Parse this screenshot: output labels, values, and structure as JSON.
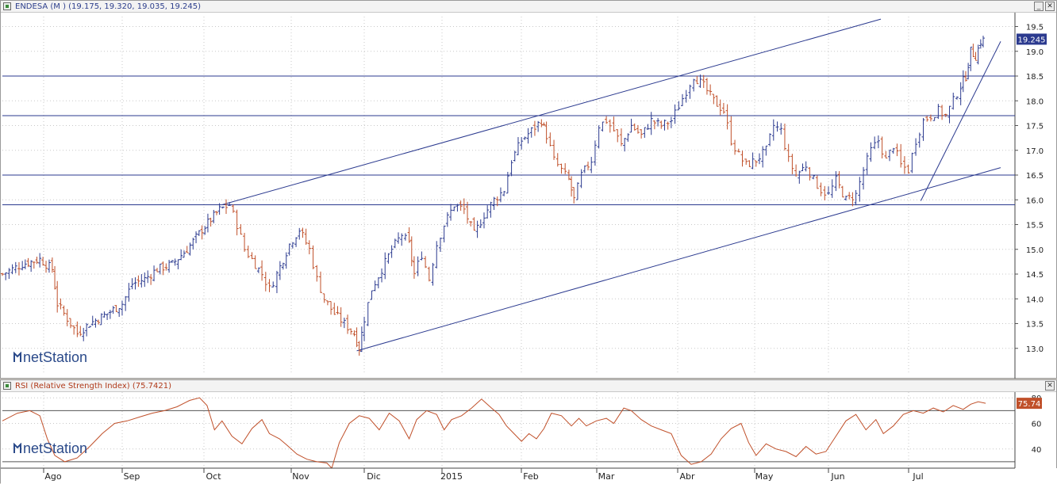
{
  "price_panel": {
    "title": "ENDESA (M ) (19.175, 19.320, 19.035, 19.245)",
    "last_label": "19.245",
    "logo": "netStation"
  },
  "rsi_panel": {
    "title": "RSI (Relative Strength Index) (75.7421)",
    "last_label": "75.74",
    "logo": "netStation"
  },
  "window_buttons": {
    "minimize": "_",
    "close": "✕"
  },
  "colors": {
    "up": "#2b3a8f",
    "down": "#c0502a",
    "rsi": "#c0502a",
    "line": "#2b3a8f",
    "grid": "#c8c8c8"
  },
  "chart_data": [
    {
      "type": "ohlc",
      "title": "ENDESA (M ) (19.175, 19.320, 19.035, 19.245)",
      "ylim": [
        12.5,
        19.7
      ],
      "yticks": [
        13.0,
        13.5,
        14.0,
        14.5,
        15.0,
        15.5,
        16.0,
        16.5,
        17.0,
        17.5,
        18.0,
        18.5,
        19.0,
        19.5
      ],
      "last_value": 19.245,
      "horizontal_levels": [
        18.5,
        17.7,
        16.5,
        15.9
      ],
      "trendlines": [
        {
          "from": [
            "Oct",
            15.9
          ],
          "to": [
            "Jul",
            19.65
          ]
        },
        {
          "from": [
            "Nov",
            12.95
          ],
          "to": [
            "Jul",
            16.65
          ]
        },
        {
          "from": [
            "Jul",
            15.98
          ],
          "to": [
            "Jul",
            19.2
          ]
        }
      ],
      "months": [
        "Ago",
        "Sep",
        "Oct",
        "Nov",
        "Dic",
        "2015",
        "Feb",
        "Mar",
        "Abr",
        "May",
        "Jun",
        "Jul"
      ],
      "close_path": [
        [
          0,
          14.5
        ],
        [
          8,
          14.7
        ],
        [
          15,
          14.8
        ],
        [
          20,
          14.6
        ],
        [
          22,
          13.9
        ],
        [
          26,
          13.6
        ],
        [
          30,
          13.3
        ],
        [
          35,
          13.5
        ],
        [
          42,
          13.7
        ],
        [
          48,
          13.9
        ],
        [
          52,
          14.3
        ],
        [
          57,
          14.4
        ],
        [
          62,
          14.6
        ],
        [
          68,
          14.7
        ],
        [
          74,
          15.0
        ],
        [
          80,
          15.4
        ],
        [
          87,
          15.8
        ],
        [
          91,
          15.9
        ],
        [
          94,
          15.5
        ],
        [
          97,
          15.0
        ],
        [
          100,
          14.8
        ],
        [
          104,
          14.5
        ],
        [
          107,
          14.2
        ],
        [
          110,
          14.5
        ],
        [
          115,
          15.1
        ],
        [
          119,
          15.4
        ],
        [
          123,
          15.0
        ],
        [
          126,
          14.4
        ],
        [
          129,
          14.0
        ],
        [
          133,
          13.7
        ],
        [
          137,
          13.5
        ],
        [
          141,
          13.3
        ],
        [
          143,
          13.0
        ],
        [
          145,
          13.6
        ],
        [
          148,
          14.2
        ],
        [
          152,
          14.6
        ],
        [
          156,
          15.0
        ],
        [
          160,
          15.3
        ],
        [
          163,
          15.1
        ],
        [
          165,
          14.5
        ],
        [
          168,
          14.9
        ],
        [
          171,
          14.4
        ],
        [
          174,
          15.1
        ],
        [
          177,
          15.5
        ],
        [
          181,
          15.9
        ],
        [
          185,
          15.8
        ],
        [
          189,
          15.3
        ],
        [
          193,
          15.7
        ],
        [
          197,
          16.0
        ],
        [
          201,
          16.2
        ],
        [
          204,
          16.8
        ],
        [
          208,
          17.2
        ],
        [
          212,
          17.4
        ],
        [
          216,
          17.6
        ],
        [
          218,
          17.3
        ],
        [
          221,
          16.8
        ],
        [
          224,
          16.6
        ],
        [
          227,
          16.4
        ],
        [
          229,
          16.0
        ],
        [
          232,
          16.5
        ],
        [
          236,
          16.8
        ],
        [
          239,
          17.5
        ],
        [
          242,
          17.6
        ],
        [
          245,
          17.4
        ],
        [
          248,
          17.1
        ],
        [
          252,
          17.5
        ],
        [
          256,
          17.3
        ],
        [
          260,
          17.6
        ],
        [
          264,
          17.5
        ],
        [
          268,
          17.6
        ],
        [
          271,
          17.9
        ],
        [
          274,
          18.2
        ],
        [
          277,
          18.5
        ],
        [
          281,
          18.3
        ],
        [
          285,
          18.0
        ],
        [
          289,
          17.8
        ],
        [
          292,
          17.2
        ],
        [
          295,
          16.9
        ],
        [
          298,
          16.7
        ],
        [
          302,
          16.8
        ],
        [
          306,
          17.0
        ],
        [
          309,
          17.5
        ],
        [
          312,
          17.4
        ],
        [
          315,
          16.8
        ],
        [
          318,
          16.5
        ],
        [
          322,
          16.7
        ],
        [
          325,
          16.4
        ],
        [
          328,
          16.2
        ],
        [
          331,
          16.1
        ],
        [
          334,
          16.4
        ],
        [
          338,
          16.0
        ],
        [
          342,
          16.1
        ],
        [
          345,
          16.6
        ],
        [
          348,
          17.0
        ],
        [
          351,
          17.2
        ],
        [
          354,
          16.8
        ],
        [
          357,
          17.1
        ],
        [
          360,
          16.7
        ],
        [
          363,
          16.6
        ],
        [
          366,
          17.2
        ],
        [
          369,
          17.6
        ],
        [
          372,
          17.7
        ],
        [
          375,
          17.8
        ],
        [
          378,
          17.7
        ],
        [
          381,
          18.0
        ],
        [
          384,
          18.3
        ],
        [
          386,
          18.5
        ],
        [
          388,
          19.0
        ],
        [
          390,
          18.9
        ],
        [
          392,
          19.2
        ],
        [
          394,
          19.25
        ]
      ],
      "x_domain": [
        0,
        400
      ]
    },
    {
      "type": "line",
      "title": "RSI (Relative Strength Index) (75.7421)",
      "ylim": [
        25,
        82
      ],
      "yticks": [
        40,
        60,
        80
      ],
      "reference_levels": [
        70,
        30
      ],
      "last_value": 75.74,
      "months": [
        "Ago",
        "Sep",
        "Oct",
        "Nov",
        "Dic",
        "2015",
        "Feb",
        "Mar",
        "Abr",
        "May",
        "Jun",
        "Jul"
      ],
      "rsi_path": [
        [
          0,
          62
        ],
        [
          6,
          68
        ],
        [
          11,
          70
        ],
        [
          15,
          66
        ],
        [
          18,
          48
        ],
        [
          21,
          35
        ],
        [
          25,
          30
        ],
        [
          30,
          33
        ],
        [
          35,
          42
        ],
        [
          40,
          52
        ],
        [
          45,
          60
        ],
        [
          50,
          62
        ],
        [
          55,
          65
        ],
        [
          60,
          68
        ],
        [
          65,
          70
        ],
        [
          70,
          73
        ],
        [
          75,
          78
        ],
        [
          79,
          80
        ],
        [
          82,
          74
        ],
        [
          85,
          55
        ],
        [
          88,
          62
        ],
        [
          92,
          50
        ],
        [
          96,
          44
        ],
        [
          100,
          56
        ],
        [
          104,
          63
        ],
        [
          107,
          52
        ],
        [
          111,
          48
        ],
        [
          114,
          43
        ],
        [
          118,
          36
        ],
        [
          122,
          32
        ],
        [
          126,
          30
        ],
        [
          130,
          29
        ],
        [
          132,
          25
        ],
        [
          135,
          45
        ],
        [
          139,
          60
        ],
        [
          143,
          66
        ],
        [
          147,
          64
        ],
        [
          151,
          55
        ],
        [
          155,
          68
        ],
        [
          159,
          62
        ],
        [
          163,
          48
        ],
        [
          166,
          63
        ],
        [
          170,
          70
        ],
        [
          174,
          67
        ],
        [
          177,
          55
        ],
        [
          180,
          63
        ],
        [
          184,
          66
        ],
        [
          188,
          72
        ],
        [
          192,
          79
        ],
        [
          196,
          72
        ],
        [
          199,
          67
        ],
        [
          202,
          58
        ],
        [
          205,
          52
        ],
        [
          208,
          46
        ],
        [
          211,
          52
        ],
        [
          214,
          48
        ],
        [
          217,
          56
        ],
        [
          220,
          68
        ],
        [
          224,
          66
        ],
        [
          228,
          58
        ],
        [
          231,
          64
        ],
        [
          234,
          58
        ],
        [
          238,
          62
        ],
        [
          242,
          64
        ],
        [
          245,
          60
        ],
        [
          249,
          72
        ],
        [
          252,
          70
        ],
        [
          256,
          63
        ],
        [
          260,
          58
        ],
        [
          264,
          55
        ],
        [
          268,
          52
        ],
        [
          272,
          35
        ],
        [
          276,
          28
        ],
        [
          280,
          30
        ],
        [
          284,
          36
        ],
        [
          288,
          48
        ],
        [
          292,
          56
        ],
        [
          296,
          60
        ],
        [
          299,
          45
        ],
        [
          302,
          35
        ],
        [
          306,
          44
        ],
        [
          310,
          40
        ],
        [
          314,
          38
        ],
        [
          318,
          34
        ],
        [
          322,
          42
        ],
        [
          326,
          36
        ],
        [
          330,
          38
        ],
        [
          334,
          50
        ],
        [
          338,
          62
        ],
        [
          342,
          67
        ],
        [
          346,
          55
        ],
        [
          350,
          63
        ],
        [
          353,
          52
        ],
        [
          357,
          58
        ],
        [
          361,
          67
        ],
        [
          365,
          70
        ],
        [
          369,
          68
        ],
        [
          373,
          72
        ],
        [
          377,
          69
        ],
        [
          381,
          74
        ],
        [
          385,
          71
        ],
        [
          388,
          75
        ],
        [
          391,
          77
        ],
        [
          394,
          75.74
        ]
      ],
      "x_domain": [
        0,
        400
      ]
    }
  ]
}
